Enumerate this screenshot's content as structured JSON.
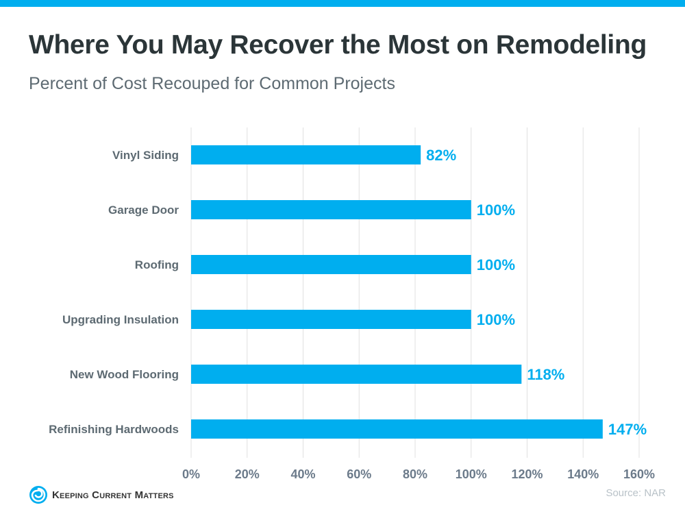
{
  "title": "Where You May Recover the Most on Remodeling",
  "subtitle": "Percent of Cost Recouped for Common Projects",
  "brand": "Keeping Current Matters",
  "source": "Source: NAR",
  "colors": {
    "bar": "#00aeef",
    "label": "#5d6a72",
    "grid": "#e0e0e0"
  },
  "chart_data": {
    "type": "bar",
    "orientation": "horizontal",
    "title": "Where You May Recover the Most on Remodeling",
    "subtitle": "Percent of Cost Recouped for Common Projects",
    "categories": [
      "Vinyl Siding",
      "Garage Door",
      "Roofing",
      "Upgrading Insulation",
      "New Wood Flooring",
      "Refinishing Hardwoods"
    ],
    "values": [
      82,
      100,
      100,
      100,
      118,
      147
    ],
    "data_labels": [
      "82%",
      "100%",
      "100%",
      "100%",
      "118%",
      "147%"
    ],
    "xlim": [
      0,
      160
    ],
    "xticks": [
      0,
      20,
      40,
      60,
      80,
      100,
      120,
      140,
      160
    ],
    "xtick_labels": [
      "0%",
      "20%",
      "40%",
      "60%",
      "80%",
      "100%",
      "120%",
      "140%",
      "160%"
    ],
    "grid": "vertical",
    "xlabel": "",
    "ylabel": ""
  }
}
